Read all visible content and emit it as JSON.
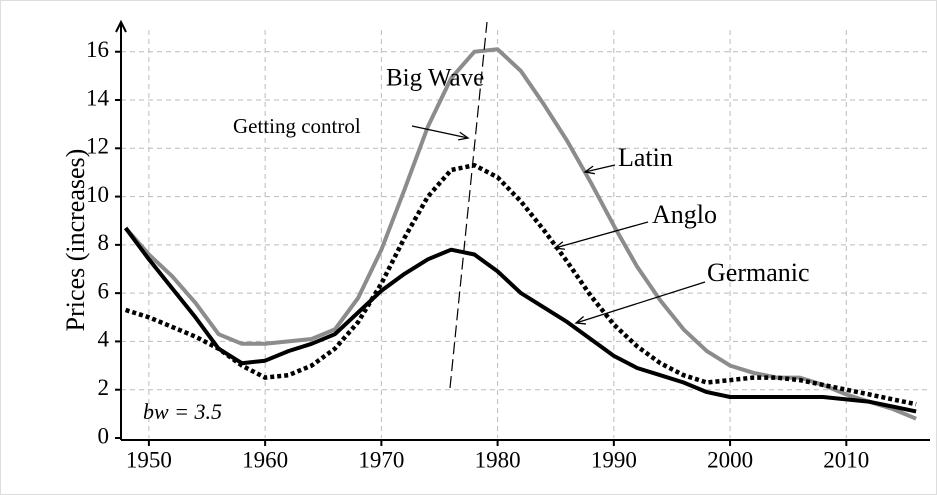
{
  "chart_data": {
    "type": "line",
    "ylabel": "Prices (increases)",
    "annotations": [
      "Big Wave",
      "Getting control",
      "bw = 3.5"
    ],
    "x": [
      1948,
      1950,
      1952,
      1954,
      1956,
      1958,
      1960,
      1962,
      1964,
      1966,
      1968,
      1970,
      1972,
      1974,
      1976,
      1978,
      1980,
      1982,
      1984,
      1986,
      1988,
      1990,
      1992,
      1994,
      1996,
      1998,
      2000,
      2002,
      2004,
      2006,
      2008,
      2010,
      2012,
      2014,
      2016
    ],
    "series": [
      {
        "name": "Latin",
        "color": "#8c8c8c",
        "dash": "solid",
        "values": [
          8.7,
          7.6,
          6.7,
          5.6,
          4.3,
          3.9,
          3.9,
          4.0,
          4.1,
          4.5,
          5.8,
          7.8,
          10.3,
          12.9,
          14.9,
          16.0,
          16.1,
          15.2,
          13.8,
          12.3,
          10.6,
          8.8,
          7.1,
          5.7,
          4.5,
          3.6,
          3.0,
          2.7,
          2.5,
          2.5,
          2.2,
          1.8,
          1.5,
          1.2,
          0.8
        ]
      },
      {
        "name": "Anglo",
        "color": "#000000",
        "dash": "dotted",
        "values": [
          5.3,
          5.0,
          4.6,
          4.2,
          3.7,
          3.0,
          2.5,
          2.6,
          3.0,
          3.7,
          4.8,
          6.4,
          8.3,
          10.0,
          11.1,
          11.3,
          10.8,
          9.8,
          8.6,
          7.3,
          5.9,
          4.7,
          3.8,
          3.1,
          2.6,
          2.3,
          2.4,
          2.5,
          2.5,
          2.4,
          2.2,
          2.0,
          1.8,
          1.6,
          1.4
        ]
      },
      {
        "name": "Germanic",
        "color": "#000000",
        "dash": "solid",
        "values": [
          8.7,
          7.4,
          6.2,
          5.0,
          3.7,
          3.1,
          3.2,
          3.6,
          3.9,
          4.3,
          5.2,
          6.1,
          6.8,
          7.4,
          7.8,
          7.6,
          6.9,
          6.0,
          5.4,
          4.8,
          4.1,
          3.4,
          2.9,
          2.6,
          2.3,
          1.9,
          1.7,
          1.7,
          1.7,
          1.7,
          1.7,
          1.6,
          1.5,
          1.3,
          1.1
        ]
      }
    ],
    "xlim": [
      1947.6,
      2017.2
    ],
    "xticks": [
      1950,
      1960,
      1970,
      1980,
      1990,
      2000,
      2010
    ],
    "ylim": [
      0,
      16.9
    ],
    "yticks": [
      0,
      2,
      4,
      6,
      8,
      10,
      12,
      14,
      16
    ],
    "grid": true
  }
}
